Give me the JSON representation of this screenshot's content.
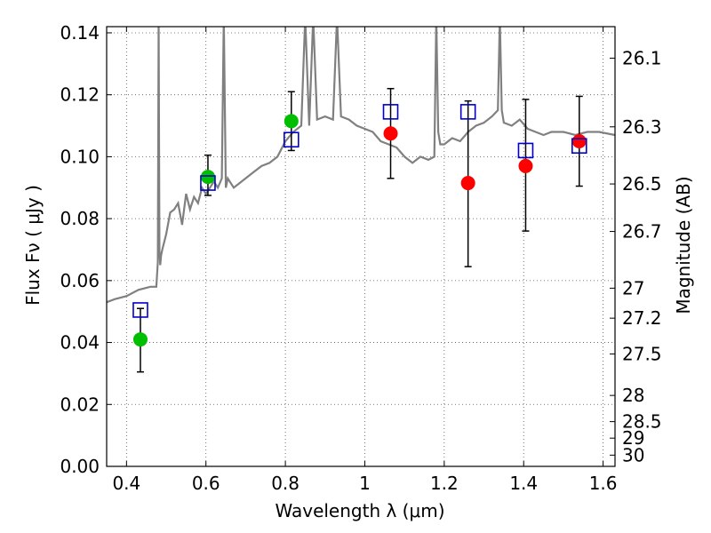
{
  "chart_data": {
    "type": "scatter",
    "xlabel": "Wavelength  λ (μm)",
    "ylabel": "Flux  Fν  ( μJy )",
    "ylabel_right": "Magnitude (AB)",
    "xlim": [
      0.35,
      1.63
    ],
    "ylim": [
      0.0,
      0.142
    ],
    "grid": true,
    "x_ticks": [
      0.4,
      0.6,
      0.8,
      1.0,
      1.2,
      1.4,
      1.6
    ],
    "x_tick_labels": [
      "0.4",
      "0.6",
      "0.8",
      "1",
      "1.2",
      "1.4",
      "1.6"
    ],
    "y_ticks": [
      0.0,
      0.02,
      0.04,
      0.06,
      0.08,
      0.1,
      0.12,
      0.14
    ],
    "y_tick_labels": [
      "0.00",
      "0.02",
      "0.04",
      "0.06",
      "0.08",
      "0.10",
      "0.12",
      "0.14"
    ],
    "right_ticks": [
      {
        "mag": 26.1,
        "label": "26.1"
      },
      {
        "mag": 26.3,
        "label": "26.3"
      },
      {
        "mag": 26.5,
        "label": "26.5"
      },
      {
        "mag": 26.7,
        "label": "26.7"
      },
      {
        "mag": 27.0,
        "label": "27"
      },
      {
        "mag": 27.2,
        "label": "27.2"
      },
      {
        "mag": 27.5,
        "label": "27.5"
      },
      {
        "mag": 28.0,
        "label": "28"
      },
      {
        "mag": 28.5,
        "label": "28.5"
      },
      {
        "mag": 29.0,
        "label": "29"
      },
      {
        "mag": 30.0,
        "label": "30"
      }
    ],
    "model_spectrum": {
      "color": "#808080",
      "x": [
        0.35,
        0.37,
        0.4,
        0.43,
        0.46,
        0.475,
        0.479,
        0.481,
        0.483,
        0.485,
        0.487,
        0.49,
        0.5,
        0.51,
        0.52,
        0.53,
        0.54,
        0.55,
        0.56,
        0.57,
        0.58,
        0.59,
        0.6,
        0.61,
        0.62,
        0.63,
        0.64,
        0.645,
        0.65,
        0.655,
        0.66,
        0.67,
        0.68,
        0.7,
        0.72,
        0.74,
        0.76,
        0.78,
        0.8,
        0.82,
        0.84,
        0.85,
        0.86,
        0.87,
        0.88,
        0.9,
        0.92,
        0.93,
        0.94,
        0.96,
        0.98,
        1.0,
        1.02,
        1.04,
        1.06,
        1.08,
        1.1,
        1.12,
        1.14,
        1.16,
        1.175,
        1.18,
        1.185,
        1.19,
        1.2,
        1.22,
        1.24,
        1.26,
        1.28,
        1.3,
        1.32,
        1.335,
        1.34,
        1.345,
        1.35,
        1.37,
        1.39,
        1.41,
        1.43,
        1.45,
        1.47,
        1.5,
        1.53,
        1.56,
        1.59,
        1.63
      ],
      "y": [
        0.053,
        0.054,
        0.055,
        0.057,
        0.058,
        0.058,
        0.066,
        0.145,
        0.07,
        0.065,
        0.068,
        0.07,
        0.075,
        0.082,
        0.083,
        0.085,
        0.078,
        0.088,
        0.083,
        0.087,
        0.085,
        0.09,
        0.088,
        0.09,
        0.092,
        0.09,
        0.093,
        0.145,
        0.09,
        0.093,
        0.092,
        0.09,
        0.091,
        0.093,
        0.095,
        0.097,
        0.098,
        0.1,
        0.105,
        0.108,
        0.11,
        0.145,
        0.11,
        0.145,
        0.112,
        0.113,
        0.112,
        0.145,
        0.113,
        0.112,
        0.11,
        0.109,
        0.108,
        0.105,
        0.104,
        0.103,
        0.1,
        0.098,
        0.1,
        0.099,
        0.1,
        0.145,
        0.108,
        0.104,
        0.104,
        0.106,
        0.105,
        0.108,
        0.11,
        0.111,
        0.113,
        0.115,
        0.145,
        0.115,
        0.111,
        0.11,
        0.112,
        0.109,
        0.108,
        0.107,
        0.108,
        0.108,
        0.107,
        0.108,
        0.108,
        0.107
      ]
    },
    "series": [
      {
        "marker": "circle",
        "color": "#00bf00",
        "x": [
          0.435,
          0.605,
          0.815
        ],
        "values": [
          0.041,
          0.0935,
          0.1115
        ],
        "err_low": [
          0.0305,
          0.0875,
          0.102
        ],
        "err_high": [
          0.051,
          0.1005,
          0.121
        ]
      },
      {
        "marker": "circle",
        "color": "#ff0000",
        "x": [
          1.065,
          1.26,
          1.405,
          1.54
        ],
        "values": [
          0.1075,
          0.0915,
          0.097,
          0.105
        ],
        "err_low": [
          0.093,
          0.0645,
          0.076,
          0.0905
        ],
        "err_high": [
          0.122,
          0.118,
          0.1185,
          0.1195
        ]
      },
      {
        "marker": "open-square",
        "color": "#0000cc",
        "x": [
          0.435,
          0.605,
          0.815,
          1.065,
          1.26,
          1.405,
          1.54
        ],
        "values": [
          0.0505,
          0.0915,
          0.1055,
          0.1145,
          0.1145,
          0.102,
          0.1035
        ]
      }
    ]
  }
}
